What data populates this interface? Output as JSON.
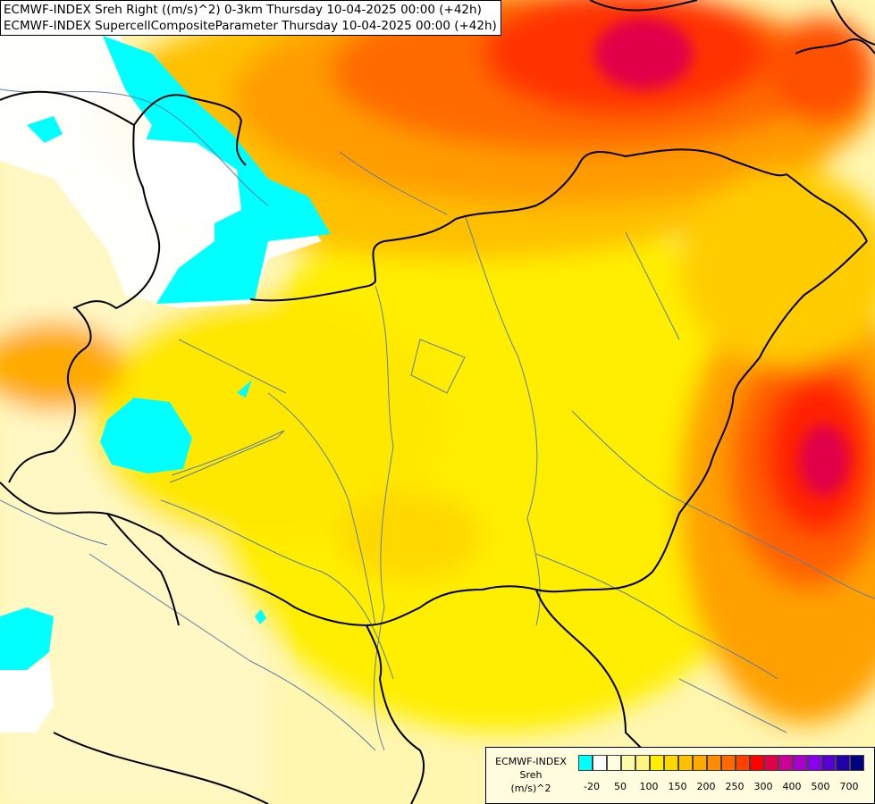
{
  "header": {
    "line1": "ECMWF-INDEX Sreh Right ((m/s)^2) 0-3km Thursday 10-04-2025 00:00 (+42h)",
    "line2": "ECMWF-INDEX SupercellCompositeParameter Thursday 10-04-2025 00:00 (+42h)"
  },
  "legend": {
    "title_lines": [
      "ECMWF-INDEX",
      "Sreh",
      "(m/s)^2"
    ],
    "colors": [
      "#00ffff",
      "#ffffff",
      "#fffde0",
      "#fffaa8",
      "#fff480",
      "#ffee00",
      "#ffd800",
      "#ffc000",
      "#ffa800",
      "#ff8c00",
      "#ff6a00",
      "#ff4000",
      "#ff0000",
      "#e0004a",
      "#cc0099",
      "#aa00cc",
      "#8800ee",
      "#5500cc",
      "#2200aa",
      "#000080"
    ],
    "tick_labels": [
      "-20",
      "50",
      "100",
      "150",
      "200",
      "250",
      "300",
      "400",
      "500",
      "700"
    ]
  }
}
